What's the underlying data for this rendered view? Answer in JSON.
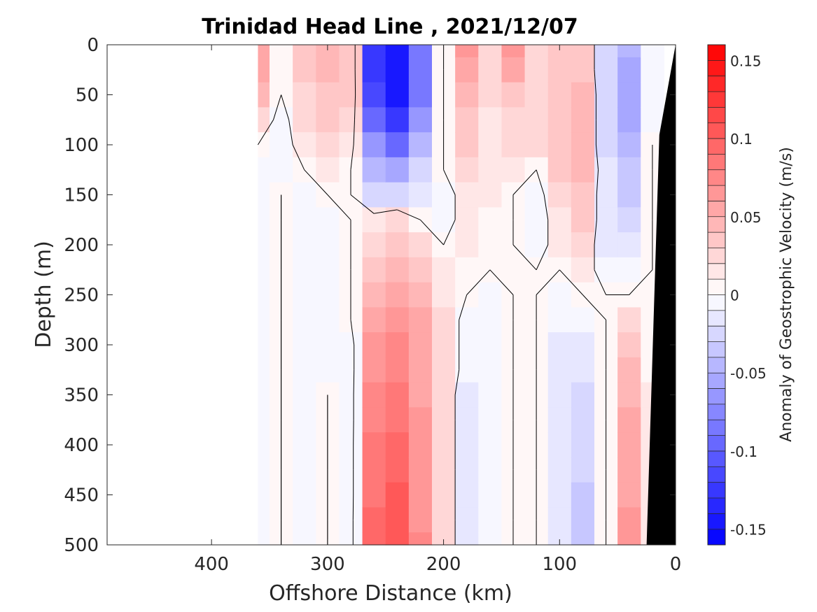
{
  "chart_data": {
    "type": "heatmap",
    "title": "Trinidad Head Line , 2021/12/07",
    "xlabel": "Offshore Distance (km)",
    "ylabel": "Depth (m)",
    "colorbar_label": "Anomaly of Geostrophic Velocity (m/s)",
    "xlim": [
      490,
      0
    ],
    "ylim": [
      0,
      500
    ],
    "x_reversed": true,
    "y_reversed": true,
    "xticks": [
      "400",
      "300",
      "200",
      "100",
      "0"
    ],
    "yticks": [
      "0",
      "50",
      "100",
      "150",
      "200",
      "250",
      "300",
      "350",
      "400",
      "450",
      "500"
    ],
    "colorbar_ticks": [
      "0.15",
      "0.1",
      "0.05",
      "0",
      "-0.05",
      "-0.1",
      "-0.15"
    ],
    "clim": [
      -0.16,
      0.16
    ],
    "colormap": {
      "negative": "#0000ff",
      "zero": "#ffffff",
      "positive": "#ff0000"
    },
    "zero_contour_color": "#000000",
    "bathymetry_color": "#000000",
    "depths": [
      0,
      25,
      50,
      75,
      100,
      125,
      150,
      175,
      200,
      225,
      250,
      275,
      300,
      325,
      350,
      375,
      400,
      425,
      450,
      475,
      500
    ],
    "distances": [
      360,
      340,
      320,
      300,
      280,
      260,
      240,
      220,
      200,
      180,
      160,
      140,
      120,
      100,
      80,
      60,
      40,
      20
    ],
    "values": [
      [
        0.05,
        0.0,
        0.03,
        0.04,
        0.03,
        -0.13,
        -0.15,
        -0.09,
        0.0,
        0.06,
        0.02,
        0.06,
        0.02,
        0.03,
        0.03,
        -0.03,
        -0.05,
        -0.01
      ],
      [
        0.05,
        0.0,
        0.03,
        0.04,
        0.03,
        -0.13,
        -0.15,
        -0.09,
        0.0,
        0.05,
        0.02,
        0.05,
        0.02,
        0.03,
        0.03,
        -0.03,
        -0.06,
        -0.01
      ],
      [
        0.04,
        0.0,
        0.02,
        0.03,
        0.03,
        -0.12,
        -0.14,
        -0.09,
        0.0,
        0.04,
        0.02,
        0.03,
        0.02,
        0.03,
        0.04,
        -0.03,
        -0.06,
        -0.01
      ],
      [
        0.02,
        -0.01,
        0.02,
        0.03,
        0.02,
        -0.1,
        -0.13,
        -0.07,
        0.0,
        0.03,
        0.01,
        0.02,
        0.02,
        0.03,
        0.04,
        -0.03,
        -0.06,
        -0.01
      ],
      [
        0.0,
        -0.01,
        0.01,
        0.02,
        0.01,
        -0.07,
        -0.1,
        -0.05,
        0.0,
        0.03,
        0.01,
        0.02,
        0.02,
        0.03,
        0.04,
        -0.03,
        -0.05,
        0.0
      ],
      [
        -0.01,
        -0.01,
        0.0,
        0.01,
        0.0,
        -0.05,
        -0.06,
        -0.03,
        0.0,
        0.02,
        0.01,
        0.01,
        0.0,
        0.03,
        0.04,
        -0.02,
        -0.04,
        0.0
      ],
      [
        -0.01,
        0.0,
        -0.01,
        0.0,
        0.0,
        -0.03,
        -0.03,
        -0.02,
        -0.01,
        0.01,
        0.01,
        0.0,
        -0.01,
        0.02,
        0.03,
        -0.02,
        -0.04,
        0.0
      ],
      [
        -0.01,
        0.0,
        -0.01,
        -0.01,
        0.0,
        0.01,
        0.02,
        0.0,
        -0.01,
        0.01,
        0.0,
        0.0,
        -0.01,
        0.01,
        0.03,
        -0.02,
        -0.03,
        0.0
      ],
      [
        -0.01,
        0.0,
        -0.01,
        -0.01,
        0.0,
        0.02,
        0.03,
        0.02,
        0.0,
        0.01,
        0.0,
        0.0,
        -0.01,
        0.01,
        0.02,
        -0.02,
        -0.02,
        0.0
      ],
      [
        -0.01,
        0.0,
        -0.01,
        -0.01,
        0.0,
        0.03,
        0.04,
        0.03,
        0.01,
        0.0,
        0.0,
        0.0,
        0.0,
        0.0,
        0.01,
        -0.01,
        -0.01,
        0.0
      ],
      [
        -0.01,
        0.0,
        -0.01,
        -0.01,
        0.0,
        0.04,
        0.05,
        0.04,
        0.01,
        0.0,
        -0.01,
        0.0,
        0.0,
        -0.01,
        0.0,
        0.0,
        0.0,
        0.0
      ],
      [
        -0.01,
        0.0,
        -0.01,
        -0.01,
        0.0,
        0.05,
        0.06,
        0.05,
        0.02,
        -0.01,
        -0.01,
        0.0,
        0.0,
        -0.01,
        -0.01,
        0.0,
        0.02,
        0.0
      ],
      [
        -0.01,
        0.0,
        -0.01,
        -0.01,
        -0.01,
        0.06,
        0.07,
        0.05,
        0.02,
        -0.01,
        -0.01,
        0.0,
        0.0,
        -0.02,
        -0.02,
        0.0,
        0.03,
        0.0
      ],
      [
        -0.01,
        0.0,
        -0.01,
        -0.01,
        -0.01,
        0.06,
        0.07,
        0.05,
        0.02,
        -0.01,
        -0.01,
        0.0,
        0.0,
        -0.02,
        -0.02,
        0.0,
        0.04,
        0.0
      ],
      [
        -0.01,
        0.0,
        -0.01,
        0.0,
        -0.01,
        0.07,
        0.08,
        0.05,
        0.02,
        -0.02,
        -0.01,
        0.0,
        0.0,
        -0.02,
        -0.03,
        0.0,
        0.04,
        0.01
      ],
      [
        -0.01,
        0.0,
        -0.01,
        0.0,
        -0.01,
        0.07,
        0.08,
        0.06,
        0.02,
        -0.02,
        -0.01,
        0.0,
        0.0,
        -0.02,
        -0.03,
        0.0,
        0.05,
        0.01
      ],
      [
        -0.01,
        0.0,
        -0.01,
        0.0,
        -0.01,
        0.08,
        0.09,
        0.06,
        0.02,
        -0.02,
        -0.01,
        0.0,
        0.0,
        -0.02,
        -0.03,
        0.0,
        0.05,
        0.01
      ],
      [
        -0.01,
        0.0,
        -0.01,
        0.0,
        -0.01,
        0.08,
        0.09,
        0.06,
        0.02,
        -0.02,
        -0.01,
        0.0,
        0.0,
        -0.02,
        -0.03,
        0.0,
        0.05,
        0.01
      ],
      [
        -0.01,
        0.0,
        -0.01,
        0.0,
        -0.01,
        0.08,
        0.1,
        0.06,
        0.02,
        -0.02,
        -0.01,
        0.0,
        0.0,
        -0.02,
        -0.04,
        0.0,
        0.05,
        0.01
      ],
      [
        -0.01,
        0.0,
        -0.01,
        0.0,
        -0.01,
        0.09,
        0.1,
        0.06,
        0.02,
        -0.02,
        -0.01,
        0.0,
        0.0,
        -0.02,
        -0.04,
        0.0,
        0.06,
        0.01
      ],
      [
        -0.01,
        0.0,
        -0.01,
        0.0,
        -0.01,
        0.09,
        0.1,
        0.07,
        0.02,
        -0.02,
        -0.01,
        0.0,
        0.0,
        -0.02,
        -0.04,
        0.0,
        0.06,
        0.01
      ]
    ],
    "bathymetry": [
      [
        0,
        0
      ],
      [
        14,
        90
      ],
      [
        25,
        500
      ]
    ]
  }
}
